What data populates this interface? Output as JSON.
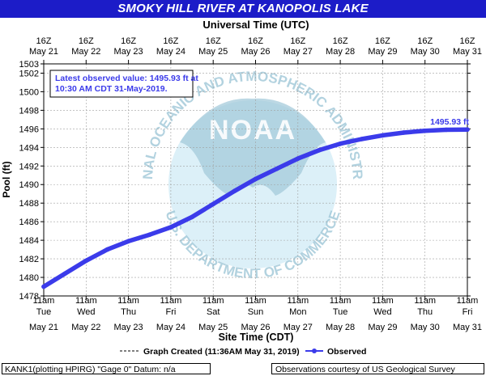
{
  "title": "SMOKY HILL RIVER AT KANOPOLIS LAKE",
  "colors": {
    "title_bg": "#1c1cc8",
    "series": "#3b3bea",
    "grid": "#a0a0a0",
    "noaa_light": "#bfe3f2",
    "noaa_dark": "#9fc7d8"
  },
  "chart_data": {
    "type": "line",
    "title": "SMOKY HILL RIVER AT KANOPOLIS LAKE",
    "xlabel": "Site Time (CDT)",
    "x2label": "Universal Time (UTC)",
    "ylabel": "Pool (ft)",
    "ylim": [
      1478,
      1503
    ],
    "yticks": [
      1478,
      1480,
      1482,
      1484,
      1486,
      1488,
      1490,
      1492,
      1494,
      1496,
      1498,
      1500,
      1502,
      1503
    ],
    "xlim": [
      0,
      10
    ],
    "grid": true,
    "xticks_bottom_time": [
      "11am",
      "11am",
      "11am",
      "11am",
      "11am",
      "11am",
      "11am",
      "11am",
      "11am",
      "11am",
      "11am"
    ],
    "xticks_bottom_day": [
      "Tue",
      "Wed",
      "Thu",
      "Fri",
      "Sat",
      "Sun",
      "Mon",
      "Tue",
      "Wed",
      "Thu",
      "Fri"
    ],
    "xticks_bottom_date": [
      "May 21",
      "May 22",
      "May 23",
      "May 24",
      "May 25",
      "May 26",
      "May 27",
      "May 28",
      "May 29",
      "May 30",
      "May 31"
    ],
    "xticks_top_time": [
      "16Z",
      "16Z",
      "16Z",
      "16Z",
      "16Z",
      "16Z",
      "16Z",
      "16Z",
      "16Z",
      "16Z",
      "16Z"
    ],
    "xticks_top_date": [
      "May 21",
      "May 22",
      "May 23",
      "May 24",
      "May 25",
      "May 26",
      "May 27",
      "May 28",
      "May 29",
      "May 30",
      "May 31"
    ],
    "series": [
      {
        "name": "Observed",
        "x": [
          0.0,
          0.5,
          1.0,
          1.5,
          2.0,
          2.5,
          3.0,
          3.5,
          4.0,
          4.5,
          5.0,
          5.5,
          6.0,
          6.5,
          7.0,
          7.5,
          8.0,
          8.5,
          9.0,
          9.5,
          10.0
        ],
        "y": [
          1479.0,
          1480.4,
          1481.8,
          1483.0,
          1483.9,
          1484.6,
          1485.4,
          1486.5,
          1487.9,
          1489.3,
          1490.6,
          1491.7,
          1492.8,
          1493.7,
          1494.4,
          1494.9,
          1495.3,
          1495.6,
          1495.8,
          1495.9,
          1495.93
        ]
      }
    ],
    "last_value_label": "1495.93 ft",
    "annotations": [
      "Latest observed value: 1495.93 ft at",
      "10:30 AM CDT 31-May-2019."
    ],
    "legend": {
      "graph_created": "Graph Created (11:36AM May 31, 2019)",
      "observed": "Observed",
      "placement": "bottom"
    }
  },
  "watermark": {
    "center_text": "NOAA",
    "ring_top": "NATIONAL OCEANIC AND ATMOSPHERIC ADMINISTRATION",
    "ring_bottom": "U.S. DEPARTMENT OF COMMERCE"
  },
  "footer": {
    "left": "KANK1(plotting HPIRG) \"Gage 0\" Datum: n/a",
    "right": "Observations courtesy of US Geological Survey"
  }
}
